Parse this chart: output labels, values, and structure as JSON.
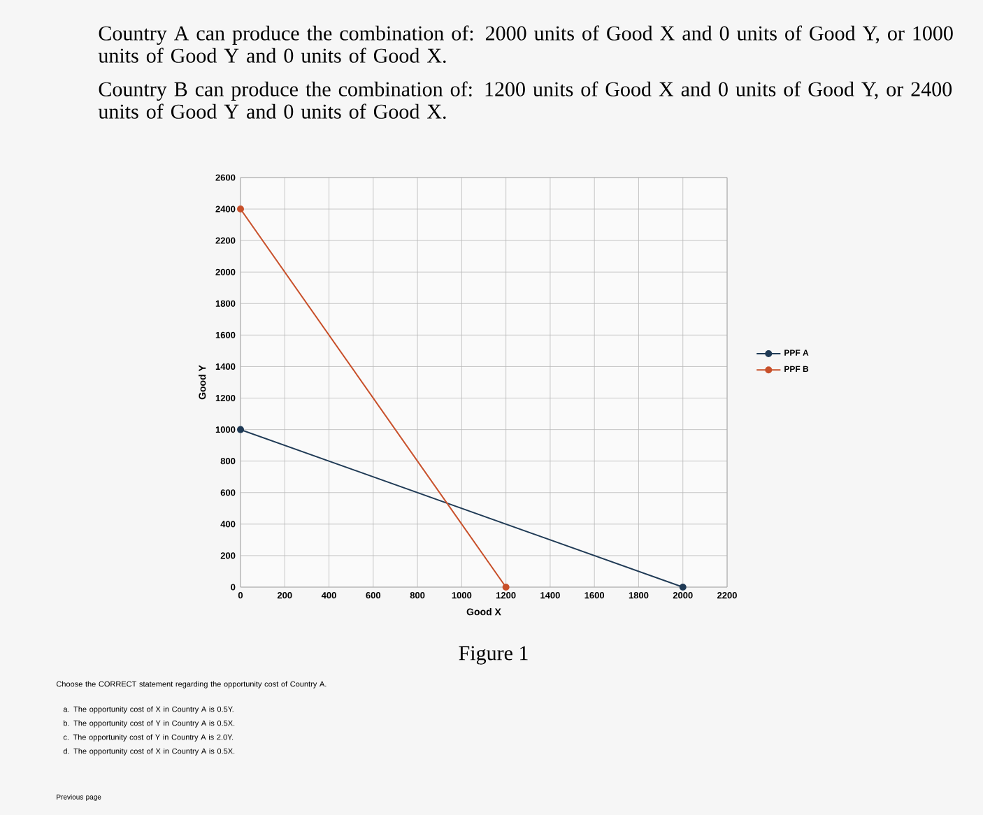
{
  "chart_data": {
    "type": "line",
    "xlabel": "Good X",
    "ylabel": "Good Y",
    "series": [
      {
        "name": "PPF A",
        "color": "#1f3a55",
        "x": [
          0,
          2000
        ],
        "values": [
          1000,
          0
        ]
      },
      {
        "name": "PPF B",
        "color": "#c8502a",
        "x": [
          0,
          1200
        ],
        "values": [
          2400,
          0
        ]
      }
    ],
    "xlim": [
      0,
      2200
    ],
    "xticks": [
      0,
      200,
      400,
      600,
      800,
      1000,
      1200,
      1400,
      1600,
      1800,
      2000,
      2200
    ],
    "ylim": [
      0,
      2600
    ],
    "yticks": [
      0,
      200,
      400,
      600,
      800,
      1000,
      1200,
      1400,
      1600,
      1800,
      2000,
      2200,
      2400,
      2600
    ],
    "grid": true,
    "legend": "right",
    "marker": "circle",
    "line_style": "solid",
    "annotations": [
      "Country A can produce the combination of: 2000 units of Good X and 0 units of Good Y, or 1000 units of Good Y and 0 units of Good X.",
      "Country B can produce the combination of: 1200 units of Good X and 0 units of Good Y, or 2400 units of Good Y and 0 units of Good X.",
      "Figure 1",
      "Choose the CORRECT statement regarding the opportunity cost of Country A.",
      "a. The opportunity cost of X in Country A is 0.5Y.",
      "b. The opportunity cost of Y in Country A is 0.5X.",
      "c. The opportunity cost of Y in Country A is 2.0Y.",
      "d. The opportunity cost of X in Country A is 0.5X.",
      "Previous page"
    ]
  }
}
